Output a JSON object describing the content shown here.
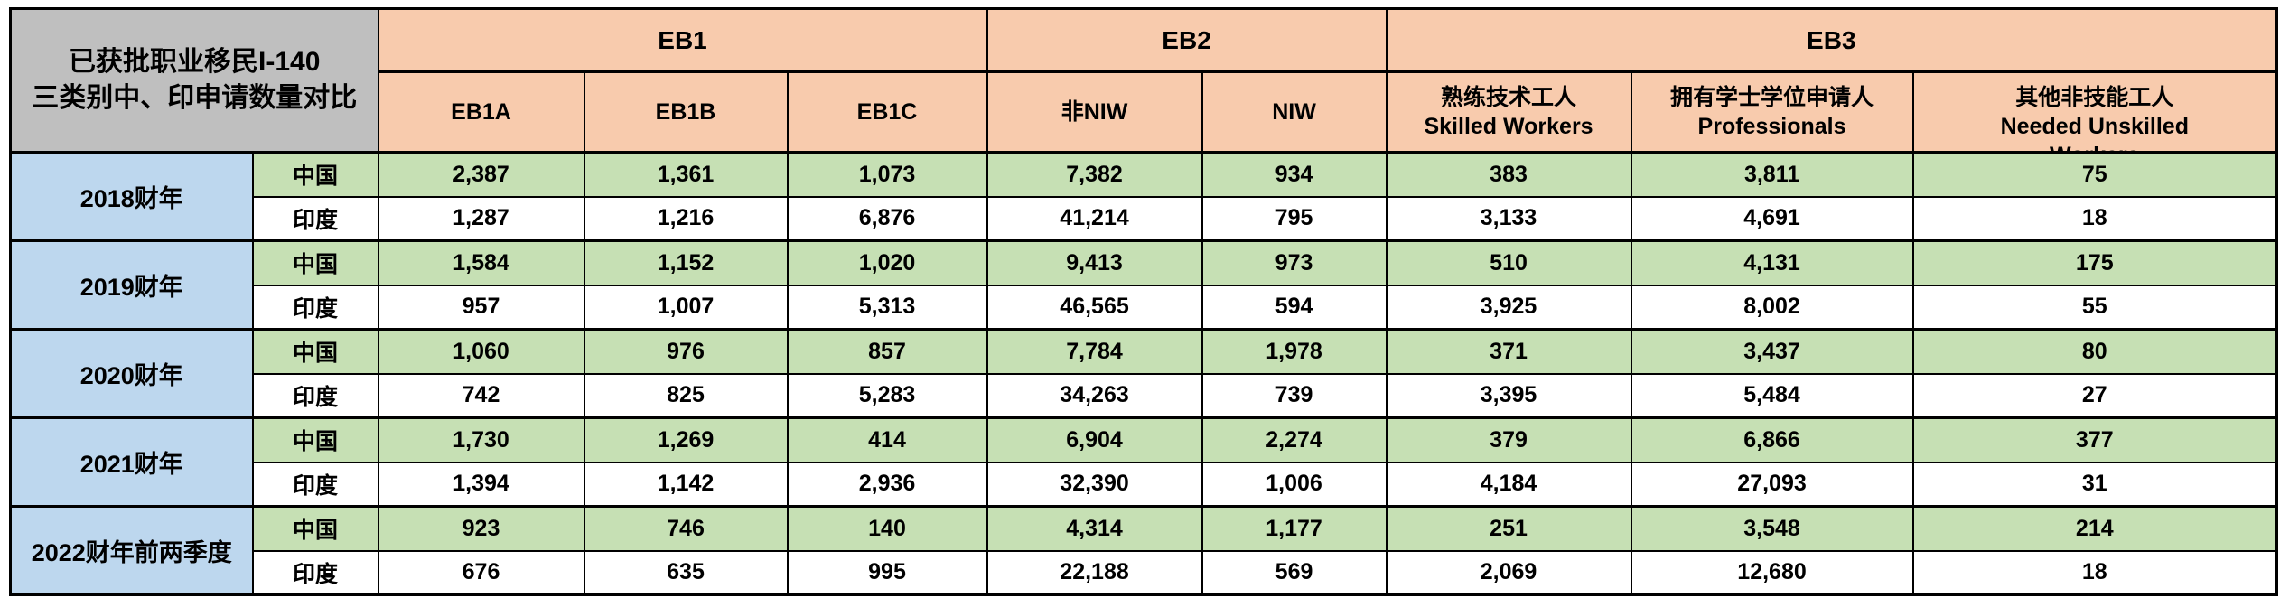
{
  "colors": {
    "header_orange": "#F8CBAD",
    "title_gray": "#BFBFBF",
    "year_blue": "#BDD7EE",
    "china_green": "#C6E0B4",
    "india_white": "#FFFFFF",
    "border_black": "#000000"
  },
  "chart_data": {
    "type": "table",
    "title_line1": "已获批职业移民I-140",
    "title_line2": "三类别中、印申请数量对比",
    "column_groups": [
      {
        "label": "EB1",
        "span": 3
      },
      {
        "label": "EB2",
        "span": 2
      },
      {
        "label": "EB3",
        "span": 3
      }
    ],
    "columns": [
      {
        "label": "EB1A"
      },
      {
        "label": "EB1B"
      },
      {
        "label": "EB1C"
      },
      {
        "label": "非NIW"
      },
      {
        "label": "NIW"
      },
      {
        "zh": "熟练技术工人",
        "en": "Skilled Workers"
      },
      {
        "zh": "拥有学士学位申请人",
        "en": "Professionals"
      },
      {
        "zh": "其他非技能工人",
        "en": "Needed Unskilled",
        "en2": "Workers"
      }
    ],
    "country_labels": {
      "china": "中国",
      "india": "印度"
    },
    "row_groups": [
      {
        "year": "2018财年",
        "china": [
          "2,387",
          "1,361",
          "1,073",
          "7,382",
          "934",
          "383",
          "3,811",
          "75"
        ],
        "india": [
          "1,287",
          "1,216",
          "6,876",
          "41,214",
          "795",
          "3,133",
          "4,691",
          "18"
        ]
      },
      {
        "year": "2019财年",
        "china": [
          "1,584",
          "1,152",
          "1,020",
          "9,413",
          "973",
          "510",
          "4,131",
          "175"
        ],
        "india": [
          "957",
          "1,007",
          "5,313",
          "46,565",
          "594",
          "3,925",
          "8,002",
          "55"
        ]
      },
      {
        "year": "2020财年",
        "china": [
          "1,060",
          "976",
          "857",
          "7,784",
          "1,978",
          "371",
          "3,437",
          "80"
        ],
        "india": [
          "742",
          "825",
          "5,283",
          "34,263",
          "739",
          "3,395",
          "5,484",
          "27"
        ]
      },
      {
        "year": "2021财年",
        "china": [
          "1,730",
          "1,269",
          "414",
          "6,904",
          "2,274",
          "379",
          "6,866",
          "377"
        ],
        "india": [
          "1,394",
          "1,142",
          "2,936",
          "32,390",
          "1,006",
          "4,184",
          "27,093",
          "31"
        ]
      },
      {
        "year": "2022财年前两季度",
        "china": [
          "923",
          "746",
          "140",
          "4,314",
          "1,177",
          "251",
          "3,548",
          "214"
        ],
        "india": [
          "676",
          "635",
          "995",
          "22,188",
          "569",
          "2,069",
          "12,680",
          "18"
        ]
      }
    ]
  }
}
